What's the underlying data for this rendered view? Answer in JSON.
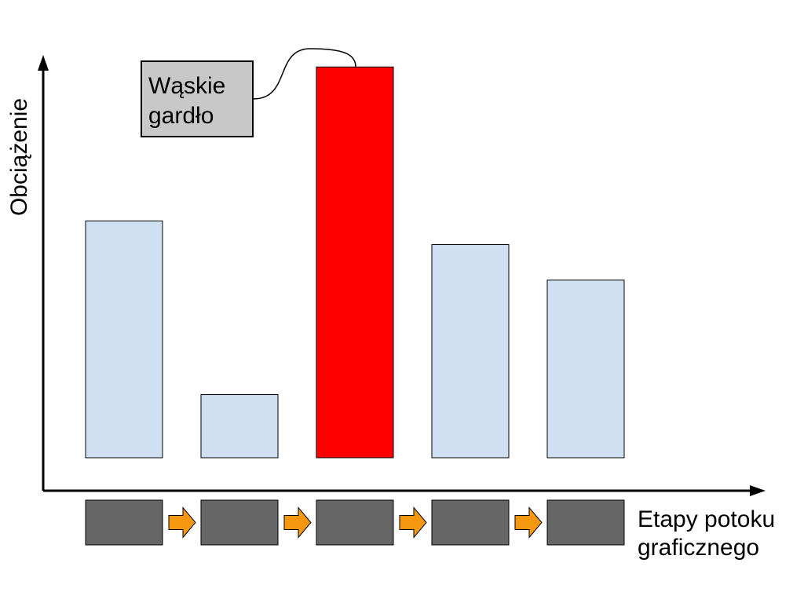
{
  "chart_data": {
    "type": "bar",
    "categories": [
      "",
      "",
      "",
      "",
      ""
    ],
    "values": [
      60,
      16,
      99,
      54,
      45
    ],
    "ylim": [
      0,
      110
    ],
    "xlabel": "Etapy potoku graficznego",
    "xlabel_lines": [
      "Etapy potoku",
      "graficznego"
    ],
    "ylabel": "Obciążenie",
    "grid": false,
    "legend": "none",
    "highlight_index": 2,
    "annotation": {
      "lines": [
        "Wąskie",
        "gardło"
      ],
      "target_index": 2
    }
  },
  "colors": {
    "bar": "#cfe0f3",
    "highlight": "#ff0000",
    "stage": "#666666",
    "arrow": "#f5980f",
    "callout_bg": "#c8c8c8"
  }
}
